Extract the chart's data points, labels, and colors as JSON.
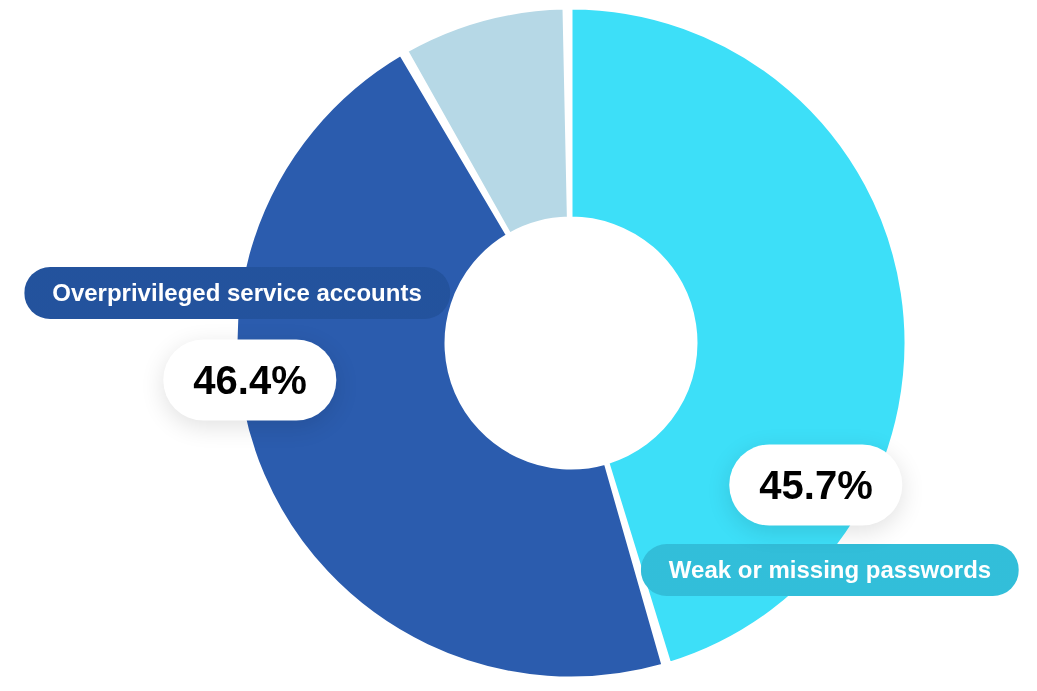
{
  "chart_data": {
    "type": "donut",
    "categories": [
      "Weak or missing passwords",
      "Overprivileged service accounts",
      null
    ],
    "values": [
      45.7,
      46.4,
      7.9
    ],
    "colors": [
      "#3ddff8",
      "#2b5cae",
      "#b6d8e6"
    ],
    "value_labels": [
      "45.7%",
      "46.4%",
      null
    ]
  }
}
